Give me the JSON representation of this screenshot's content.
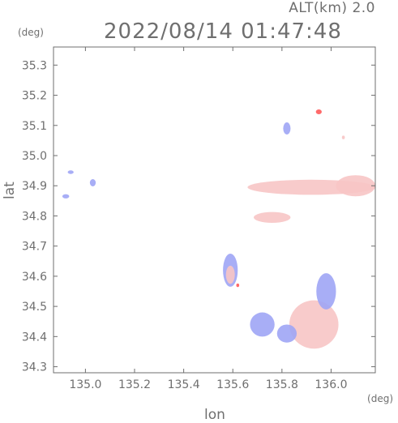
{
  "header": {
    "altitude_label": "ALT(km) 2.0",
    "datetime": "2022/08/14 01:47:48",
    "lat_unit": "(deg)",
    "lon_unit": "(deg)"
  },
  "axes": {
    "xlabel": "lon",
    "ylabel": "lat",
    "xlim": [
      134.87,
      136.18
    ],
    "ylim": [
      34.28,
      35.36
    ],
    "xticks": [
      135.0,
      135.2,
      135.4,
      135.6,
      135.8,
      136.0
    ],
    "xtick_labels": [
      "135.0",
      "135.2",
      "135.4",
      "135.6",
      "135.8",
      "136.0"
    ],
    "yticks": [
      34.3,
      34.4,
      34.5,
      34.6,
      34.7,
      34.8,
      34.9,
      35.0,
      35.1,
      35.2,
      35.3
    ],
    "ytick_labels": [
      "34.3",
      "34.4",
      "34.5",
      "34.6",
      "34.7",
      "34.8",
      "34.9",
      "35.0",
      "35.1",
      "35.2",
      "35.3"
    ]
  },
  "colors": {
    "frame": "#6f6f6f",
    "positive": "#f7c5c5",
    "positive_strong": "#ff5a5a",
    "negative": "#9fa5f5",
    "negative_strong": "#5960e8"
  },
  "echo_regions": [
    {
      "name": "west-cell-1",
      "lon": 134.94,
      "lat": 34.945,
      "rx": 0.012,
      "ry": 0.006,
      "tone": "negative"
    },
    {
      "name": "west-cell-2",
      "lon": 135.03,
      "lat": 34.91,
      "rx": 0.012,
      "ry": 0.012,
      "tone": "negative"
    },
    {
      "name": "west-cell-3",
      "lon": 134.92,
      "lat": 34.865,
      "rx": 0.014,
      "ry": 0.007,
      "tone": "negative"
    },
    {
      "name": "band-north",
      "lon": 135.92,
      "lat": 34.895,
      "rx": 0.26,
      "ry": 0.025,
      "tone": "positive"
    },
    {
      "name": "band-north-east",
      "lon": 136.1,
      "lat": 34.9,
      "rx": 0.08,
      "ry": 0.035,
      "tone": "positive"
    },
    {
      "name": "band-middle",
      "lon": 135.76,
      "lat": 34.795,
      "rx": 0.075,
      "ry": 0.018,
      "tone": "positive"
    },
    {
      "name": "north-isolated-1",
      "lon": 135.95,
      "lat": 35.145,
      "rx": 0.012,
      "ry": 0.008,
      "tone": "positive_strong"
    },
    {
      "name": "north-isolated-2",
      "lon": 135.82,
      "lat": 35.09,
      "rx": 0.015,
      "ry": 0.02,
      "tone": "negative"
    },
    {
      "name": "north-isolated-3",
      "lon": 136.05,
      "lat": 35.06,
      "rx": 0.006,
      "ry": 0.006,
      "tone": "positive"
    },
    {
      "name": "centre-cluster",
      "lon": 135.59,
      "lat": 34.62,
      "rx": 0.03,
      "ry": 0.055,
      "tone": "negative"
    },
    {
      "name": "centre-cluster-core",
      "lon": 135.59,
      "lat": 34.605,
      "rx": 0.018,
      "ry": 0.03,
      "tone": "positive"
    },
    {
      "name": "south-east-mass",
      "lon": 135.93,
      "lat": 34.44,
      "rx": 0.1,
      "ry": 0.08,
      "tone": "positive"
    },
    {
      "name": "south-east-arc",
      "lon": 135.98,
      "lat": 34.55,
      "rx": 0.04,
      "ry": 0.06,
      "tone": "negative"
    },
    {
      "name": "south-cells",
      "lon": 135.72,
      "lat": 34.44,
      "rx": 0.05,
      "ry": 0.04,
      "tone": "negative"
    },
    {
      "name": "south-cells-2",
      "lon": 135.82,
      "lat": 34.41,
      "rx": 0.04,
      "ry": 0.03,
      "tone": "negative"
    },
    {
      "name": "south-strong",
      "lon": 135.62,
      "lat": 34.57,
      "rx": 0.006,
      "ry": 0.006,
      "tone": "positive_strong"
    }
  ]
}
